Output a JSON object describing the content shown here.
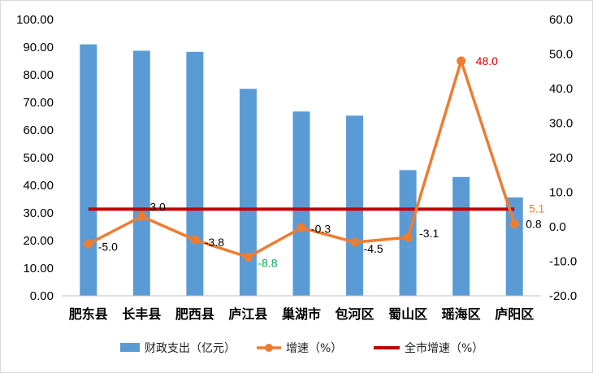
{
  "chart_data": {
    "type": "bar",
    "categories": [
      "肥东县",
      "长丰县",
      "肥西县",
      "庐江县",
      "巢湖市",
      "包河区",
      "蜀山区",
      "瑶海区",
      "庐阳区"
    ],
    "series": [
      {
        "name": "财政支出（亿元）",
        "type": "bar",
        "axis": "left",
        "color": "#5b9bd5",
        "values": [
          91.0,
          88.7,
          88.3,
          74.9,
          66.7,
          65.2,
          45.5,
          43.0,
          35.6
        ]
      },
      {
        "name": "增速（%）",
        "type": "line",
        "axis": "right",
        "color": "#ed7d31",
        "values": [
          -5.0,
          3.0,
          -3.8,
          -8.8,
          -0.3,
          -4.5,
          -3.1,
          48.0,
          0.8
        ],
        "labels": [
          "-5.0",
          "3.0",
          "-3.8",
          "-8.8",
          "-0.3",
          "-4.5",
          "-3.1",
          "48.0",
          "0.8"
        ],
        "label_colors": [
          "#000000",
          "#000000",
          "#000000",
          "#00b050",
          "#000000",
          "#000000",
          "#000000",
          "#e00000",
          "#000000"
        ]
      },
      {
        "name": "全市增速（%）",
        "type": "line",
        "axis": "right",
        "color": "#c00000",
        "values": [
          5.1,
          5.1,
          5.1,
          5.1,
          5.1,
          5.1,
          5.1,
          5.1,
          5.1
        ],
        "label": "5.1",
        "label_color": "#ed7d31"
      }
    ],
    "y_left": {
      "ylim": [
        0,
        100
      ],
      "ticks": [
        "0.00",
        "10.00",
        "20.00",
        "30.00",
        "40.00",
        "50.00",
        "60.00",
        "70.00",
        "80.00",
        "90.00",
        "100.00"
      ]
    },
    "y_right": {
      "ylim": [
        -20,
        60
      ],
      "ticks": [
        "-20.0",
        "-10.0",
        "0.0",
        "10.0",
        "20.0",
        "30.0",
        "40.0",
        "50.0",
        "60.0"
      ]
    },
    "grid": false,
    "legend": "bottom"
  }
}
